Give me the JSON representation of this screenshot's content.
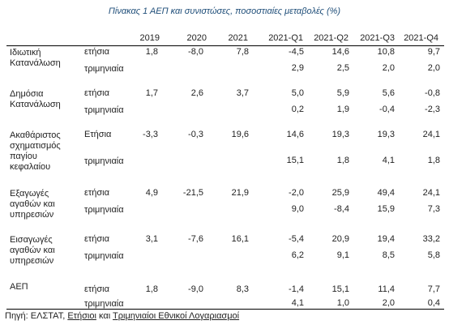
{
  "title": "Πίνακας 1 ΑΕΠ και συνιστώσες, ποσοστιαίες μεταβολές (%)",
  "columns": [
    "2019",
    "2020",
    "2021",
    "2021-Q1",
    "2021-Q2",
    "2021-Q3",
    "2021-Q4"
  ],
  "groups": [
    {
      "label": [
        "Ιδιωτική",
        "Κατανάλωση"
      ],
      "rows": [
        {
          "type": "ετήσια",
          "values": [
            "1,8",
            "-8,0",
            "7,8",
            "-4,5",
            "14,6",
            "10,8",
            "9,7"
          ]
        },
        {
          "type": "τριμηνιαία",
          "values": [
            "",
            "",
            "",
            "2,9",
            "2,5",
            "2,0",
            "2,0"
          ]
        }
      ]
    },
    {
      "label": [
        "Δημόσια",
        "Κατανάλωση"
      ],
      "rows": [
        {
          "type": "ετήσια",
          "values": [
            "1,7",
            "2,6",
            "3,7",
            "5,0",
            "5,9",
            "5,6",
            "-0,8"
          ]
        },
        {
          "type": "τριμηνιαία",
          "values": [
            "",
            "",
            "",
            "0,2",
            "1,9",
            "-0,4",
            "-2,3"
          ]
        }
      ]
    },
    {
      "label": [
        "Ακαθάριστος",
        "σχηματισμός",
        "παγίου",
        "κεφαλαίου"
      ],
      "rows": [
        {
          "type": "Ετήσια",
          "values": [
            "-3,3",
            "-0,3",
            "19,6",
            "14,6",
            "19,3",
            "19,3",
            "24,1"
          ]
        },
        {
          "type": "τριμηνιαία",
          "values": [
            "",
            "",
            "",
            "15,1",
            "1,8",
            "4,1",
            "1,8"
          ]
        }
      ]
    },
    {
      "label": [
        "Εξαγωγές",
        "αγαθών και",
        "υπηρεσιών"
      ],
      "rows": [
        {
          "type": "ετήσια",
          "values": [
            "4,9",
            "-21,5",
            "21,9",
            "-2,0",
            "25,9",
            "49,4",
            "24,1"
          ]
        },
        {
          "type": "τριμηνιαία",
          "values": [
            "",
            "",
            "",
            "9,0",
            "-8,4",
            "15,9",
            "7,3"
          ]
        }
      ]
    },
    {
      "label": [
        "Εισαγωγές",
        "αγαθών και",
        "υπηρεσιών"
      ],
      "rows": [
        {
          "type": "ετήσια",
          "values": [
            "3,1",
            "-7,6",
            "16,1",
            "-5,4",
            "20,9",
            "19,4",
            "33,2"
          ]
        },
        {
          "type": "τριμηνιαία",
          "values": [
            "",
            "",
            "",
            "6,2",
            "9,1",
            "8,5",
            "5,8"
          ]
        }
      ]
    },
    {
      "label": [
        "ΑΕΠ"
      ],
      "rows": [
        {
          "type": "ετήσια",
          "values": [
            "1,8",
            "-9,0",
            "8,3",
            "-1,4",
            "15,1",
            "11,4",
            "7,7"
          ]
        },
        {
          "type": "τριμηνιαία",
          "values": [
            "",
            "",
            "",
            "4,1",
            "1,0",
            "2,0",
            "0,4"
          ]
        }
      ]
    }
  ],
  "source": {
    "prefix": "Πηγή: ΕΛΣΤΑΤ, ",
    "link1": "Ετήσιοι",
    "middle": " και ",
    "link2": "Τριμηνιαίοι Εθνικοί Λογαριασμοί"
  }
}
